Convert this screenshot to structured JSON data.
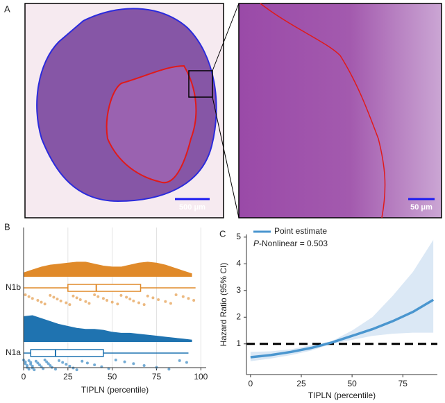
{
  "panel_a": {
    "label": "A",
    "scale_bar_left": "500 μm",
    "scale_bar_right": "50 μm"
  },
  "chart_data": [
    {
      "type": "raincloud",
      "label": "B",
      "xlabel": "TIPLN (percentile)",
      "xlim": [
        0,
        103
      ],
      "xticks": [
        0,
        25,
        50,
        75,
        100
      ],
      "grid": true,
      "density_x": [
        0,
        5,
        10,
        15,
        20,
        25,
        30,
        35,
        40,
        45,
        50,
        55,
        60,
        65,
        70,
        75,
        80,
        85,
        90,
        95
      ],
      "groups": [
        {
          "name": "N1b",
          "color": "#e08a2a",
          "point_color": "#e9ad6a",
          "density": [
            0.004,
            0.007,
            0.01,
            0.012,
            0.013,
            0.014,
            0.015,
            0.015,
            0.013,
            0.011,
            0.01,
            0.01,
            0.012,
            0.014,
            0.015,
            0.014,
            0.012,
            0.009,
            0.006,
            0.003
          ],
          "box": {
            "min": 0,
            "q1": 25,
            "median": 41,
            "q3": 66,
            "max": 97
          },
          "points": [
            1,
            3,
            5,
            8,
            10,
            12,
            15,
            17,
            19,
            21,
            24,
            26,
            28,
            30,
            32,
            35,
            37,
            40,
            42,
            45,
            47,
            50,
            53,
            55,
            58,
            60,
            62,
            65,
            68,
            70,
            73,
            76,
            80,
            83,
            86,
            90,
            93,
            96
          ]
        },
        {
          "name": "N1a",
          "color": "#1f73b0",
          "point_color": "#5a9ccc",
          "density": [
            0.026,
            0.027,
            0.024,
            0.021,
            0.018,
            0.016,
            0.014,
            0.013,
            0.013,
            0.012,
            0.01,
            0.009,
            0.009,
            0.008,
            0.007,
            0.006,
            0.005,
            0.004,
            0.003,
            0.002
          ],
          "box": {
            "min": 0,
            "q1": 4,
            "median": 18,
            "q3": 45,
            "max": 93
          },
          "points": [
            0,
            1,
            1,
            2,
            2,
            3,
            3,
            4,
            4,
            5,
            5,
            6,
            7,
            8,
            9,
            10,
            11,
            12,
            13,
            14,
            15,
            16,
            18,
            20,
            22,
            24,
            26,
            28,
            30,
            33,
            36,
            40,
            44,
            48,
            52,
            57,
            62,
            68,
            75,
            82,
            88,
            92
          ]
        }
      ]
    },
    {
      "type": "line",
      "label": "C",
      "xlabel": "TIPLN (percentile)",
      "ylabel": "Hazard Ratio (95% CI)",
      "xlim": [
        -2,
        92
      ],
      "xticks": [
        0,
        25,
        50,
        75
      ],
      "ylim": [
        -0.15,
        5.1
      ],
      "yticks": [
        1,
        2,
        3,
        4,
        5
      ],
      "x": [
        0,
        10,
        20,
        30,
        40,
        50,
        60,
        70,
        80,
        90
      ],
      "series": [
        {
          "name": "Point estimate",
          "color": "#4a96cf",
          "values": [
            0.5,
            0.58,
            0.7,
            0.85,
            1.05,
            1.3,
            1.55,
            1.85,
            2.2,
            2.65
          ]
        }
      ],
      "ci_lower": [
        0.35,
        0.45,
        0.58,
        0.75,
        1.0,
        1.15,
        1.3,
        1.38,
        1.42,
        1.42
      ],
      "ci_upper": [
        0.7,
        0.72,
        0.8,
        0.95,
        1.1,
        1.5,
        2.0,
        2.8,
        3.7,
        4.9
      ],
      "band_color": "#dbe8f5",
      "reference_line": 1,
      "annotation_italic": "P",
      "annotation": "-Nonlinear = 0.503"
    }
  ]
}
